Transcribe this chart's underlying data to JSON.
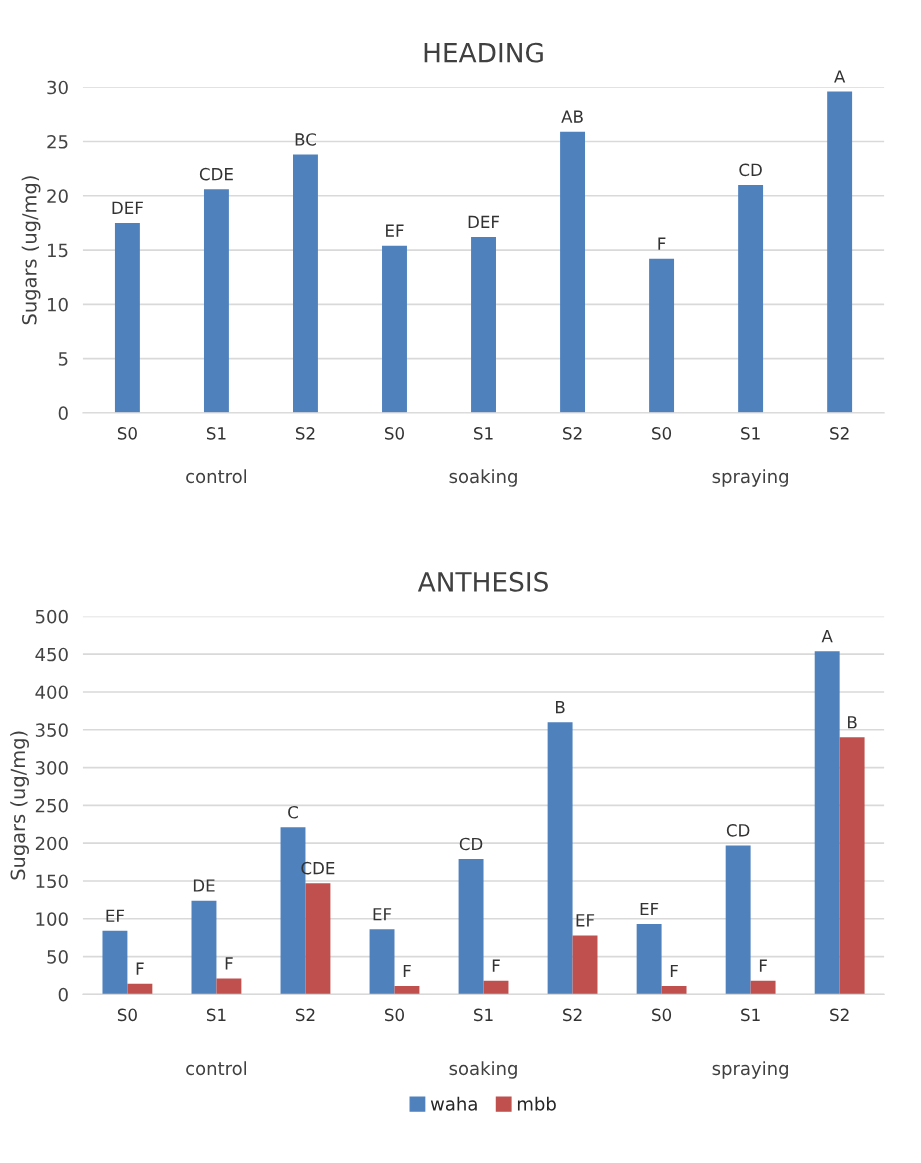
{
  "chart_data": [
    {
      "type": "bar",
      "title": "HEADING",
      "ylabel": "Sugars (ug/mg)",
      "categories": [
        "S0",
        "S1",
        "S2",
        "S0",
        "S1",
        "S2",
        "S0",
        "S1",
        "S2"
      ],
      "annotations": [
        "control",
        "soaking",
        "spraying"
      ],
      "series": [
        {
          "color": "#4f81bd",
          "values": [
            17.5,
            20.6,
            23.8,
            15.4,
            16.2,
            25.9,
            14.2,
            21.0,
            29.6
          ],
          "value_labels": [
            "DEF",
            "CDE",
            "BC",
            "EF",
            "DEF",
            "AB",
            "F",
            "CD",
            "A"
          ]
        }
      ],
      "ylim": [
        0,
        30
      ],
      "yticks": [
        0,
        5,
        10,
        15,
        20,
        25,
        30
      ],
      "grid": "y"
    },
    {
      "type": "bar",
      "title": "ANTHESIS",
      "ylabel": "Sugars (ug/mg)",
      "categories": [
        "S0",
        "S1",
        "S2",
        "S0",
        "S1",
        "S2",
        "S0",
        "S1",
        "S2"
      ],
      "annotations": [
        "control",
        "soaking",
        "spraying"
      ],
      "series": [
        {
          "name": "waha",
          "color": "#4f81bd",
          "values": [
            84,
            124,
            221,
            86,
            179,
            360,
            93,
            197,
            454
          ],
          "value_labels": [
            "EF",
            "DE",
            "C",
            "EF",
            "CD",
            "B",
            "EF",
            "CD",
            "A"
          ]
        },
        {
          "name": "mbb",
          "color": "#c0504d",
          "values": [
            14,
            21,
            147,
            11,
            18,
            78,
            11,
            18,
            340
          ],
          "value_labels": [
            "F",
            "F",
            "CDE",
            "F",
            "F",
            "EF",
            "F",
            "F",
            "B"
          ]
        }
      ],
      "ylim": [
        0,
        500
      ],
      "yticks": [
        0,
        50,
        100,
        150,
        200,
        250,
        300,
        350,
        400,
        450,
        500
      ],
      "grid": "y",
      "legend": "bottom"
    }
  ]
}
